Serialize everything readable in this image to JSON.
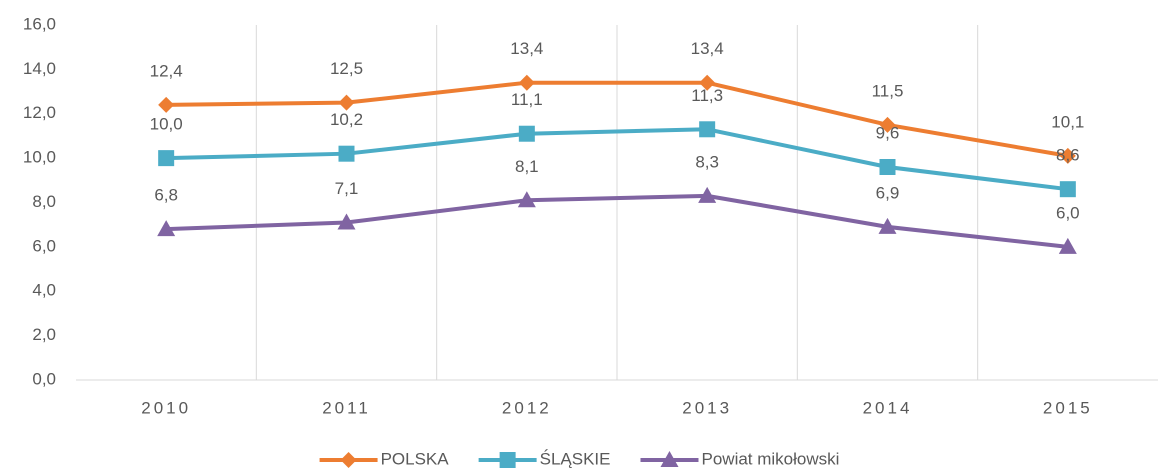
{
  "chart_data": {
    "type": "line",
    "categories": [
      "2010",
      "2011",
      "2012",
      "2013",
      "2014",
      "2015"
    ],
    "series": [
      {
        "name": "POLSKA",
        "color": "#ED7D31",
        "marker": "diamond",
        "values": [
          12.4,
          12.5,
          13.4,
          13.4,
          11.5,
          10.1
        ],
        "value_labels": [
          "12,4",
          "12,5",
          "13,4",
          "13,4",
          "11,5",
          "10,1"
        ]
      },
      {
        "name": "ŚLĄSKIE",
        "color": "#4BACC6",
        "marker": "square",
        "values": [
          10.0,
          10.2,
          11.1,
          11.3,
          9.6,
          8.6
        ],
        "value_labels": [
          "10,0",
          "10,2",
          "11,1",
          "11,3",
          "9,6",
          "8,6"
        ]
      },
      {
        "name": "Powiat mikołowski",
        "color": "#8064A2",
        "marker": "triangle",
        "values": [
          6.8,
          7.1,
          8.1,
          8.3,
          6.9,
          6.0
        ],
        "value_labels": [
          "6,8",
          "7,1",
          "8,1",
          "8,3",
          "6,9",
          "6,0"
        ]
      }
    ],
    "ylim": [
      0,
      16
    ],
    "yticks": [
      {
        "value": 0,
        "label": "0,0"
      },
      {
        "value": 2,
        "label": "2,0"
      },
      {
        "value": 4,
        "label": "4,0"
      },
      {
        "value": 6,
        "label": "6,0"
      },
      {
        "value": 8,
        "label": "8,0"
      },
      {
        "value": 10,
        "label": "10,0"
      },
      {
        "value": 12,
        "label": "12,0"
      },
      {
        "value": 14,
        "label": "14,0"
      },
      {
        "value": 16,
        "label": "16,0"
      }
    ],
    "grid": "vertical",
    "legend": "bottom"
  }
}
